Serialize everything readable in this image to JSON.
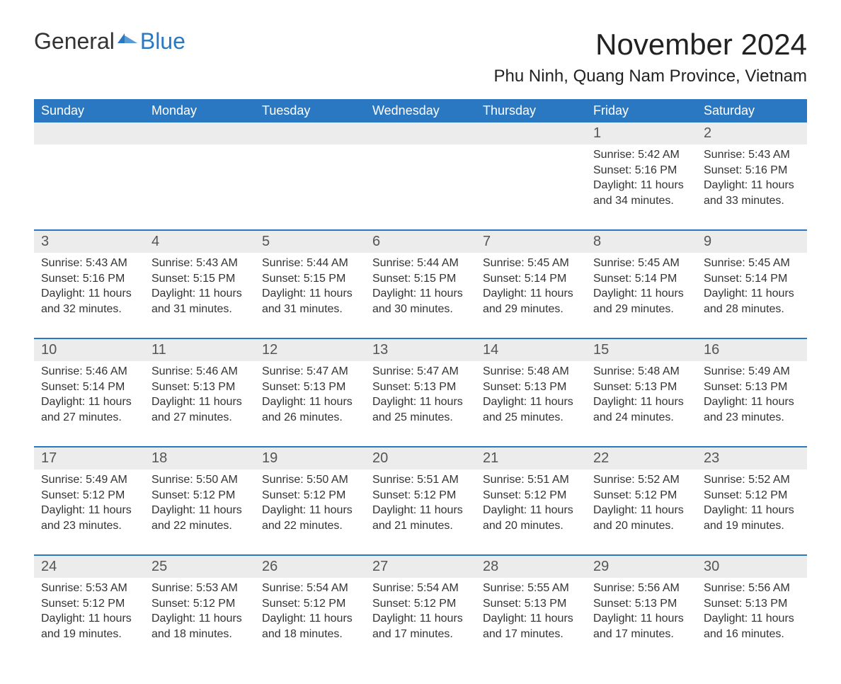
{
  "brand": {
    "word1": "General",
    "word2": "Blue"
  },
  "colors": {
    "accent": "#2b78c2",
    "band": "#ececec",
    "text": "#333333",
    "title_text": "#222222",
    "background": "#ffffff"
  },
  "typography": {
    "month_title_fontsize": 42,
    "location_fontsize": 24,
    "dow_fontsize": 18,
    "daynum_fontsize": 20,
    "body_fontsize": 16
  },
  "title": "November 2024",
  "location": "Phu Ninh, Quang Nam Province, Vietnam",
  "daysOfWeek": [
    "Sunday",
    "Monday",
    "Tuesday",
    "Wednesday",
    "Thursday",
    "Friday",
    "Saturday"
  ],
  "labels": {
    "sunrise": "Sunrise:",
    "sunset": "Sunset:",
    "daylight": "Daylight:"
  },
  "weeks": [
    [
      null,
      null,
      null,
      null,
      null,
      {
        "n": "1",
        "sunrise": "5:42 AM",
        "sunset": "5:16 PM",
        "daylight": "11 hours and 34 minutes."
      },
      {
        "n": "2",
        "sunrise": "5:43 AM",
        "sunset": "5:16 PM",
        "daylight": "11 hours and 33 minutes."
      }
    ],
    [
      {
        "n": "3",
        "sunrise": "5:43 AM",
        "sunset": "5:16 PM",
        "daylight": "11 hours and 32 minutes."
      },
      {
        "n": "4",
        "sunrise": "5:43 AM",
        "sunset": "5:15 PM",
        "daylight": "11 hours and 31 minutes."
      },
      {
        "n": "5",
        "sunrise": "5:44 AM",
        "sunset": "5:15 PM",
        "daylight": "11 hours and 31 minutes."
      },
      {
        "n": "6",
        "sunrise": "5:44 AM",
        "sunset": "5:15 PM",
        "daylight": "11 hours and 30 minutes."
      },
      {
        "n": "7",
        "sunrise": "5:45 AM",
        "sunset": "5:14 PM",
        "daylight": "11 hours and 29 minutes."
      },
      {
        "n": "8",
        "sunrise": "5:45 AM",
        "sunset": "5:14 PM",
        "daylight": "11 hours and 29 minutes."
      },
      {
        "n": "9",
        "sunrise": "5:45 AM",
        "sunset": "5:14 PM",
        "daylight": "11 hours and 28 minutes."
      }
    ],
    [
      {
        "n": "10",
        "sunrise": "5:46 AM",
        "sunset": "5:14 PM",
        "daylight": "11 hours and 27 minutes."
      },
      {
        "n": "11",
        "sunrise": "5:46 AM",
        "sunset": "5:13 PM",
        "daylight": "11 hours and 27 minutes."
      },
      {
        "n": "12",
        "sunrise": "5:47 AM",
        "sunset": "5:13 PM",
        "daylight": "11 hours and 26 minutes."
      },
      {
        "n": "13",
        "sunrise": "5:47 AM",
        "sunset": "5:13 PM",
        "daylight": "11 hours and 25 minutes."
      },
      {
        "n": "14",
        "sunrise": "5:48 AM",
        "sunset": "5:13 PM",
        "daylight": "11 hours and 25 minutes."
      },
      {
        "n": "15",
        "sunrise": "5:48 AM",
        "sunset": "5:13 PM",
        "daylight": "11 hours and 24 minutes."
      },
      {
        "n": "16",
        "sunrise": "5:49 AM",
        "sunset": "5:13 PM",
        "daylight": "11 hours and 23 minutes."
      }
    ],
    [
      {
        "n": "17",
        "sunrise": "5:49 AM",
        "sunset": "5:12 PM",
        "daylight": "11 hours and 23 minutes."
      },
      {
        "n": "18",
        "sunrise": "5:50 AM",
        "sunset": "5:12 PM",
        "daylight": "11 hours and 22 minutes."
      },
      {
        "n": "19",
        "sunrise": "5:50 AM",
        "sunset": "5:12 PM",
        "daylight": "11 hours and 22 minutes."
      },
      {
        "n": "20",
        "sunrise": "5:51 AM",
        "sunset": "5:12 PM",
        "daylight": "11 hours and 21 minutes."
      },
      {
        "n": "21",
        "sunrise": "5:51 AM",
        "sunset": "5:12 PM",
        "daylight": "11 hours and 20 minutes."
      },
      {
        "n": "22",
        "sunrise": "5:52 AM",
        "sunset": "5:12 PM",
        "daylight": "11 hours and 20 minutes."
      },
      {
        "n": "23",
        "sunrise": "5:52 AM",
        "sunset": "5:12 PM",
        "daylight": "11 hours and 19 minutes."
      }
    ],
    [
      {
        "n": "24",
        "sunrise": "5:53 AM",
        "sunset": "5:12 PM",
        "daylight": "11 hours and 19 minutes."
      },
      {
        "n": "25",
        "sunrise": "5:53 AM",
        "sunset": "5:12 PM",
        "daylight": "11 hours and 18 minutes."
      },
      {
        "n": "26",
        "sunrise": "5:54 AM",
        "sunset": "5:12 PM",
        "daylight": "11 hours and 18 minutes."
      },
      {
        "n": "27",
        "sunrise": "5:54 AM",
        "sunset": "5:12 PM",
        "daylight": "11 hours and 17 minutes."
      },
      {
        "n": "28",
        "sunrise": "5:55 AM",
        "sunset": "5:13 PM",
        "daylight": "11 hours and 17 minutes."
      },
      {
        "n": "29",
        "sunrise": "5:56 AM",
        "sunset": "5:13 PM",
        "daylight": "11 hours and 17 minutes."
      },
      {
        "n": "30",
        "sunrise": "5:56 AM",
        "sunset": "5:13 PM",
        "daylight": "11 hours and 16 minutes."
      }
    ]
  ]
}
